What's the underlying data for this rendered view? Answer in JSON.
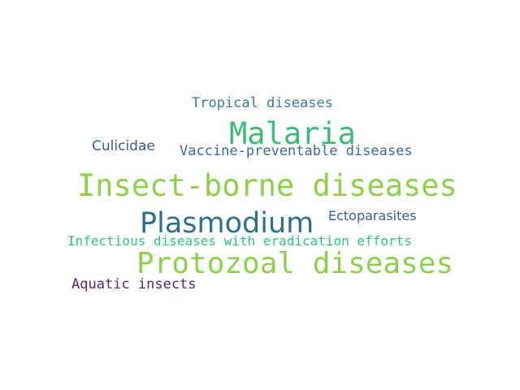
{
  "words": [
    {
      "text": "Tropical diseases",
      "color": "#3f7aa0"
    },
    {
      "text": "Malaria",
      "color": "#3dba77"
    },
    {
      "text": "Culicidae",
      "color": "#3c5a92"
    },
    {
      "text": "Vaccine-preventable diseases",
      "color": "#3d6a98"
    },
    {
      "text": "Insect-borne diseases",
      "color": "#8ed04d"
    },
    {
      "text": "Plasmodium",
      "color": "#2f6f8e"
    },
    {
      "text": "Ectoparasites",
      "color": "#3e5c90"
    },
    {
      "text": "Infectious diseases with eradication efforts",
      "color": "#35c27b"
    },
    {
      "text": "Protozoal diseases",
      "color": "#8ed04d"
    },
    {
      "text": "Aquatic insects",
      "color": "#4b2a7f"
    }
  ]
}
